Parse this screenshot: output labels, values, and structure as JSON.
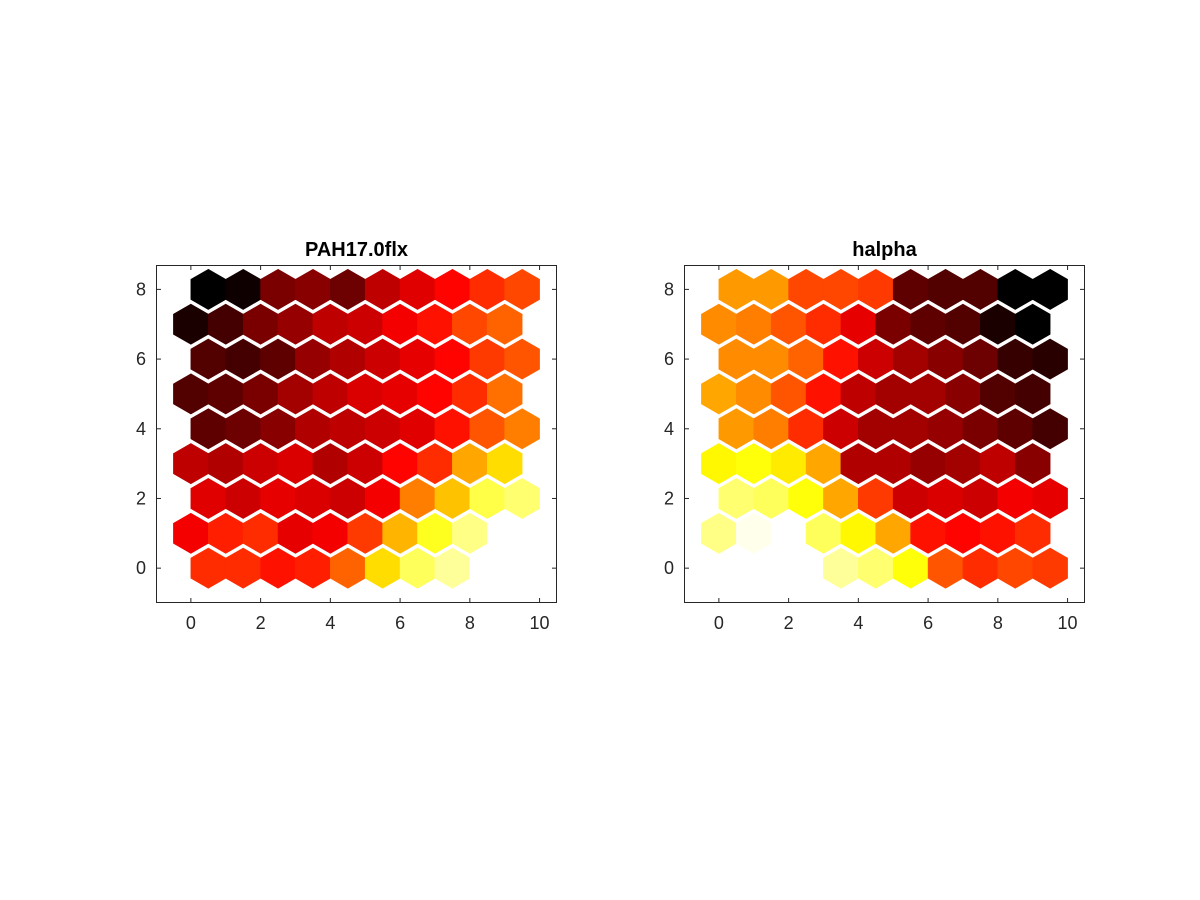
{
  "chart_data": [
    {
      "type": "heatmap",
      "subtype": "hexagonal-som-plane",
      "title": "PAH17.0flx",
      "xlim": [
        -1,
        10.5
      ],
      "ylim": [
        -1,
        8.7
      ],
      "xticks": [
        0,
        2,
        4,
        6,
        8,
        10
      ],
      "yticks": [
        0,
        2,
        4,
        6,
        8
      ],
      "grid": false,
      "colormap": "hot",
      "rows": 9,
      "cols": 10,
      "values": [
        [
          0.0,
          0.02,
          0.18,
          0.2,
          0.16,
          0.28,
          0.33,
          0.38,
          0.44,
          0.48
        ],
        [
          0.04,
          0.1,
          0.18,
          0.22,
          0.28,
          0.3,
          0.36,
          0.4,
          0.48,
          0.52
        ],
        [
          0.12,
          0.1,
          0.14,
          0.22,
          0.26,
          0.3,
          0.34,
          0.38,
          0.46,
          0.5
        ],
        [
          0.12,
          0.14,
          0.18,
          0.24,
          0.28,
          0.32,
          0.34,
          0.38,
          0.44,
          0.54
        ],
        [
          0.14,
          0.16,
          0.2,
          0.26,
          0.28,
          0.3,
          0.33,
          0.4,
          0.5,
          0.56
        ],
        [
          0.28,
          0.26,
          0.3,
          0.32,
          0.26,
          0.3,
          0.38,
          0.44,
          0.62,
          0.7
        ],
        [
          0.33,
          0.3,
          0.34,
          0.32,
          0.3,
          0.36,
          0.56,
          0.66,
          0.82,
          0.86
        ],
        [
          0.36,
          0.42,
          0.44,
          0.34,
          0.36,
          0.46,
          0.64,
          0.78,
          0.88,
          1.0
        ],
        [
          0.44,
          0.44,
          0.4,
          0.42,
          0.52,
          0.7,
          0.84,
          0.9,
          1.0,
          1.0
        ]
      ]
    },
    {
      "type": "heatmap",
      "subtype": "hexagonal-som-plane",
      "title": "halpha",
      "xlim": [
        -1,
        10.5
      ],
      "ylim": [
        -1,
        8.7
      ],
      "xticks": [
        0,
        2,
        4,
        6,
        8,
        10
      ],
      "yticks": [
        0,
        2,
        4,
        6,
        8
      ],
      "grid": false,
      "colormap": "hot",
      "rows": 9,
      "cols": 10,
      "values": [
        [
          0.6,
          0.6,
          0.48,
          0.48,
          0.46,
          0.14,
          0.12,
          0.12,
          0.0,
          0.0
        ],
        [
          0.58,
          0.56,
          0.5,
          0.44,
          0.34,
          0.18,
          0.14,
          0.12,
          0.04,
          0.0
        ],
        [
          0.58,
          0.58,
          0.52,
          0.4,
          0.3,
          0.24,
          0.2,
          0.16,
          0.08,
          0.06
        ],
        [
          0.62,
          0.58,
          0.5,
          0.4,
          0.28,
          0.24,
          0.24,
          0.2,
          0.12,
          0.1
        ],
        [
          0.6,
          0.56,
          0.44,
          0.3,
          0.24,
          0.24,
          0.22,
          0.18,
          0.14,
          0.1
        ],
        [
          0.74,
          0.76,
          0.72,
          0.62,
          0.26,
          0.26,
          0.22,
          0.24,
          0.28,
          0.2
        ],
        [
          0.86,
          0.84,
          0.76,
          0.62,
          0.46,
          0.3,
          0.32,
          0.3,
          0.36,
          0.34
        ],
        [
          0.88,
          0.98,
          1.0,
          0.84,
          0.74,
          0.62,
          0.4,
          0.38,
          0.4,
          0.44
        ],
        [
          1.0,
          1.0,
          1.0,
          0.9,
          0.86,
          0.76,
          0.5,
          0.44,
          0.48,
          0.46
        ]
      ]
    }
  ]
}
